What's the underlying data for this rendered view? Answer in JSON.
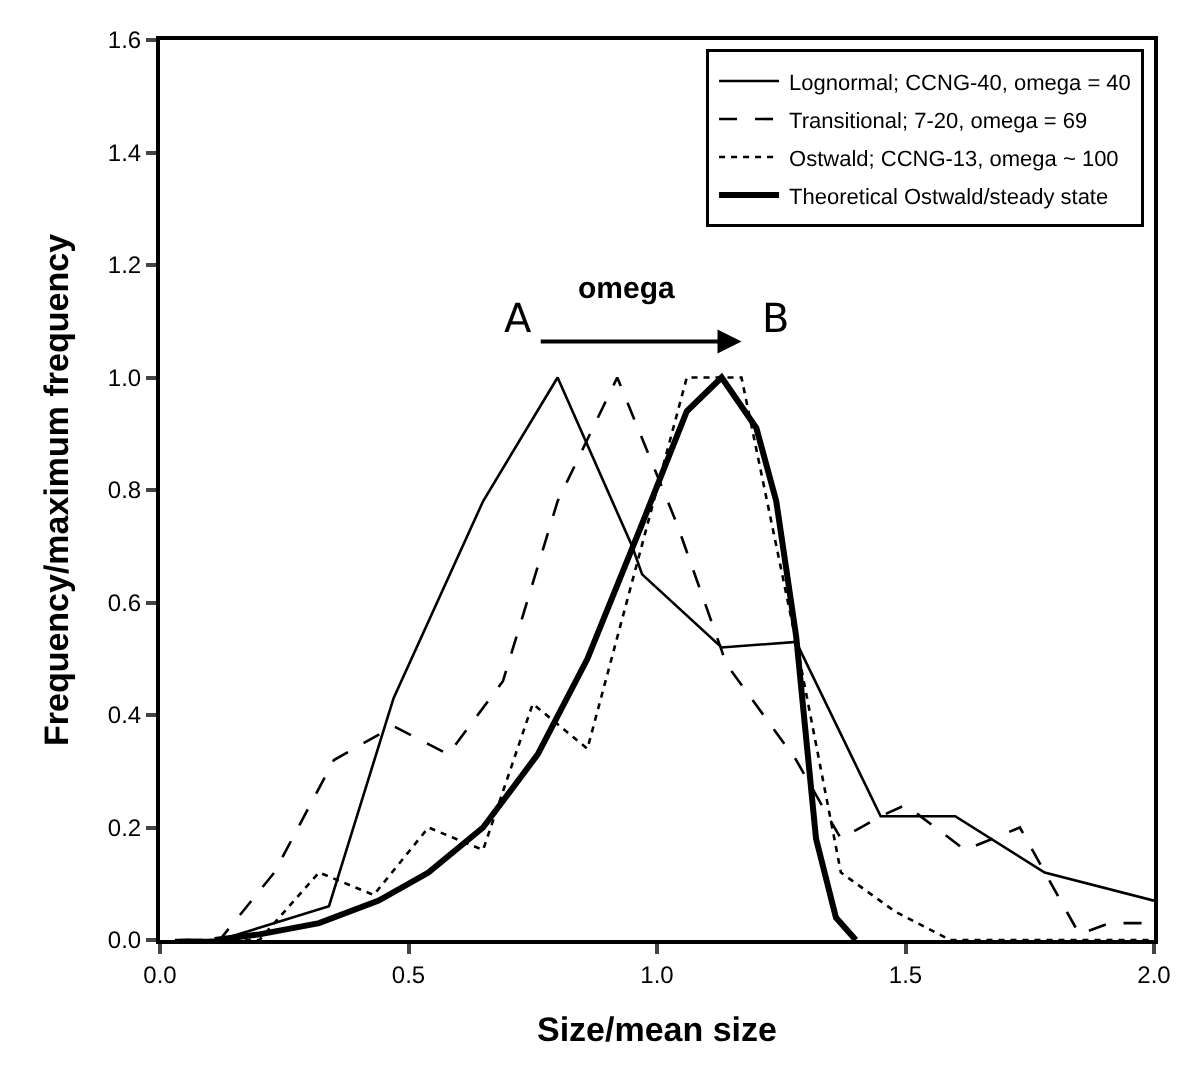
{
  "chart_data": {
    "type": "line",
    "xlabel": "Size/mean size",
    "ylabel": "Frequency/maximum frequency",
    "xlim": [
      0,
      2
    ],
    "ylim": [
      0,
      1.6
    ],
    "xticks": [
      {
        "value": 0,
        "label": "0.0"
      },
      {
        "value": 0.5,
        "label": "0.5"
      },
      {
        "value": 1,
        "label": "1.0"
      },
      {
        "value": 1.5,
        "label": "1.5"
      },
      {
        "value": 2,
        "label": "2.0"
      }
    ],
    "yticks": [
      {
        "value": 0,
        "label": "0.0"
      },
      {
        "value": 0.2,
        "label": "0.2"
      },
      {
        "value": 0.4,
        "label": "0.4"
      },
      {
        "value": 0.6,
        "label": "0.6"
      },
      {
        "value": 0.8,
        "label": "0.8"
      },
      {
        "value": 1,
        "label": "1.0"
      },
      {
        "value": 1.2,
        "label": "1.2"
      },
      {
        "value": 1.4,
        "label": "1.4"
      },
      {
        "value": 1.6,
        "label": "1.6"
      }
    ],
    "legend": "top right",
    "marker": "none",
    "series": [
      {
        "name": "Lognormal; CCNG-40, omega = 40",
        "color": "#000000",
        "line_style": "solid",
        "x": [
          0.03,
          0.12,
          0.34,
          0.47,
          0.65,
          0.8,
          0.95,
          0.97,
          1.13,
          1.28,
          1.45,
          1.6,
          1.78,
          2.0
        ],
        "values": [
          0,
          0,
          0.06,
          0.43,
          0.78,
          1.0,
          0.7,
          0.65,
          0.52,
          0.53,
          0.22,
          0.22,
          0.12,
          0.07
        ]
      },
      {
        "name": "Transitional; 7-20, omega = 69",
        "color": "#000000",
        "line_style": "dashed",
        "x": [
          0.04,
          0.12,
          0.23,
          0.35,
          0.47,
          0.58,
          0.69,
          0.8,
          0.92,
          1.04,
          1.14,
          1.28,
          1.37,
          1.45,
          1.5,
          1.62,
          1.73,
          1.85,
          1.91,
          2.0
        ],
        "values": [
          0,
          0,
          0.12,
          0.32,
          0.38,
          0.33,
          0.46,
          0.78,
          1.0,
          0.74,
          0.49,
          0.32,
          0.18,
          0.22,
          0.24,
          0.16,
          0.2,
          0.01,
          0.03,
          0.03
        ]
      },
      {
        "name": "Ostwald; CCNG-13, omega ~ 100",
        "color": "#000000",
        "line_style": "dotted",
        "x": [
          0.05,
          0.2,
          0.32,
          0.43,
          0.54,
          0.65,
          0.75,
          0.86,
          1.06,
          1.17,
          1.28,
          1.37,
          1.48,
          1.59,
          2.0
        ],
        "values": [
          0,
          0,
          0.12,
          0.08,
          0.2,
          0.16,
          0.42,
          0.34,
          1.0,
          1.0,
          0.53,
          0.12,
          0.05,
          0,
          0
        ]
      },
      {
        "name": "Theoretical Ostwald/steady state",
        "color": "#000000",
        "line_style": "solid",
        "x": [
          0.11,
          0.2,
          0.32,
          0.44,
          0.54,
          0.65,
          0.76,
          0.86,
          0.97,
          1.06,
          1.13,
          1.2,
          1.24,
          1.28,
          1.32,
          1.36,
          1.4
        ],
        "values": [
          0,
          0.01,
          0.03,
          0.07,
          0.12,
          0.2,
          0.33,
          0.5,
          0.74,
          0.94,
          1.0,
          0.91,
          0.78,
          0.54,
          0.18,
          0.04,
          0
        ]
      }
    ],
    "annotations": [
      "A",
      "B",
      "omega"
    ]
  }
}
